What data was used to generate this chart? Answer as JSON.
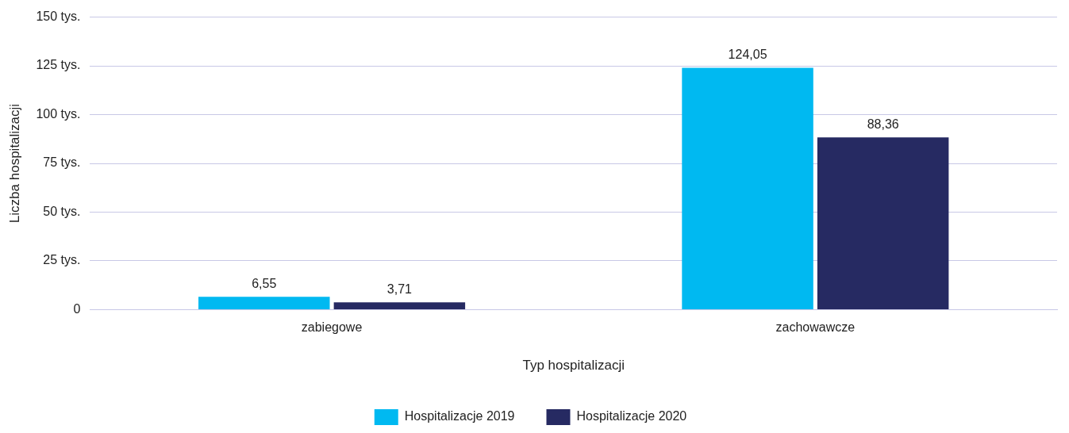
{
  "chart_data": {
    "type": "bar",
    "xlabel": "Typ hospitalizacji",
    "ylabel": "Liczba hospitalizacji",
    "categories": [
      "zabiegowe",
      "zachowawcze"
    ],
    "series": [
      {
        "name": "Hospitalizacje 2019",
        "color": "#00b9f1",
        "values": [
          6.55,
          124.05
        ],
        "value_labels": [
          "6,55",
          "124,05"
        ]
      },
      {
        "name": "Hospitalizacje 2020",
        "color": "#262a62",
        "values": [
          3.71,
          88.36
        ],
        "value_labels": [
          "3,71",
          "88,36"
        ]
      }
    ],
    "ylim": [
      0,
      150
    ],
    "yticks": [
      0,
      {
        "value": 25,
        "label": "25 tys."
      },
      {
        "value": 50,
        "label": "50 tys."
      },
      {
        "value": 75,
        "label": "75 tys."
      },
      {
        "value": 100,
        "label": "100 tys."
      },
      {
        "value": 125,
        "label": "125 tys."
      },
      {
        "value": 150,
        "label": "150 tys."
      }
    ],
    "grid": "y",
    "legend": "bottom"
  }
}
